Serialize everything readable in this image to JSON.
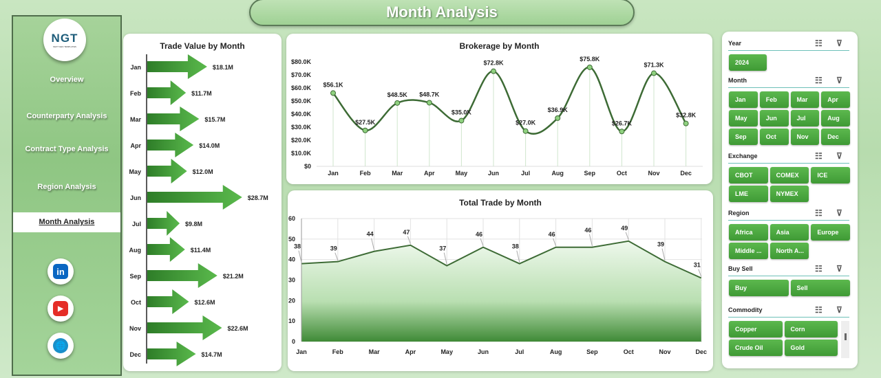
{
  "header": {
    "title": "Month Analysis"
  },
  "sidebar": {
    "logo_text": "NGT",
    "logo_sub": "NEXT GEN TEMPLATES",
    "items": [
      {
        "label": "Overview"
      },
      {
        "label": "Counterparty Analysis"
      },
      {
        "label": "Contract Type Analysis"
      },
      {
        "label": "Region Analysis"
      },
      {
        "label": "Month Analysis",
        "active": true
      }
    ],
    "social": [
      {
        "icon": "linkedin-icon",
        "label": "in",
        "color": "#0a66c2"
      },
      {
        "icon": "youtube-icon",
        "label": "▶",
        "color": "#e52d27"
      },
      {
        "icon": "globe-icon",
        "label": "🌐",
        "color": "#1a8fc9"
      }
    ]
  },
  "chart_data": [
    {
      "type": "bar",
      "orientation": "horizontal",
      "title": "Trade Value by Month",
      "categories": [
        "Jan",
        "Feb",
        "Mar",
        "Apr",
        "May",
        "Jun",
        "Jul",
        "Aug",
        "Sep",
        "Oct",
        "Nov",
        "Dec"
      ],
      "values": [
        18.1,
        11.7,
        15.7,
        14.0,
        12.0,
        28.7,
        9.8,
        11.4,
        21.2,
        12.6,
        22.6,
        14.7
      ],
      "labels": [
        "$18.1M",
        "$11.7M",
        "$15.7M",
        "$14.0M",
        "$12.0M",
        "$28.7M",
        "$9.8M",
        "$11.4M",
        "$21.2M",
        "$12.6M",
        "$22.6M",
        "$14.7M"
      ],
      "unit": "$M",
      "color": "#3fa535"
    },
    {
      "type": "line",
      "smooth": true,
      "title": "Brokerage by Month",
      "categories": [
        "Jan",
        "Feb",
        "Mar",
        "Apr",
        "May",
        "Jun",
        "Jul",
        "Aug",
        "Sep",
        "Oct",
        "Nov",
        "Dec"
      ],
      "values": [
        56.1,
        27.5,
        48.5,
        48.7,
        35.0,
        72.8,
        27.0,
        36.9,
        75.8,
        26.7,
        71.3,
        32.8
      ],
      "labels": [
        "$56.1K",
        "$27.5K",
        "$48.5K",
        "$48.7K",
        "$35.0K",
        "$72.8K",
        "$27.0K",
        "$36.9K",
        "$75.8K",
        "$26.7K",
        "$71.3K",
        "$32.8K"
      ],
      "ylim": [
        0,
        80
      ],
      "yticks": [
        "$0",
        "$10.0K",
        "$20.0K",
        "$30.0K",
        "$40.0K",
        "$50.0K",
        "$60.0K",
        "$70.0K",
        "$80.0K"
      ],
      "color": "#3d6b35"
    },
    {
      "type": "area",
      "title": "Total Trade by Month",
      "categories": [
        "Jan",
        "Feb",
        "Mar",
        "Apr",
        "May",
        "Jun",
        "Jul",
        "Aug",
        "Sep",
        "Oct",
        "Nov",
        "Dec"
      ],
      "values": [
        38,
        39,
        44,
        47,
        37,
        46,
        38,
        46,
        46,
        49,
        39,
        31
      ],
      "ylim": [
        0,
        60
      ],
      "yticks": [
        "0",
        "10",
        "20",
        "30",
        "40",
        "50",
        "60"
      ],
      "grid": true,
      "color": "#3d6b35"
    }
  ],
  "slicers": [
    {
      "title": "Year",
      "items": [
        "2024"
      ]
    },
    {
      "title": "Month",
      "items": [
        "Jan",
        "Feb",
        "Mar",
        "Apr",
        "May",
        "Jun",
        "Jul",
        "Aug",
        "Sep",
        "Oct",
        "Nov",
        "Dec"
      ]
    },
    {
      "title": "Exchange",
      "items": [
        "CBOT",
        "COMEX",
        "ICE",
        "LME",
        "NYMEX"
      ]
    },
    {
      "title": "Region",
      "items": [
        "Africa",
        "Asia",
        "Europe",
        "Middle ...",
        "North A..."
      ]
    },
    {
      "title": "Buy Sell",
      "items": [
        "Buy",
        "Sell"
      ]
    },
    {
      "title": "Commodity",
      "items": [
        "Copper",
        "Corn",
        "Crude Oil",
        "Gold"
      ]
    }
  ]
}
